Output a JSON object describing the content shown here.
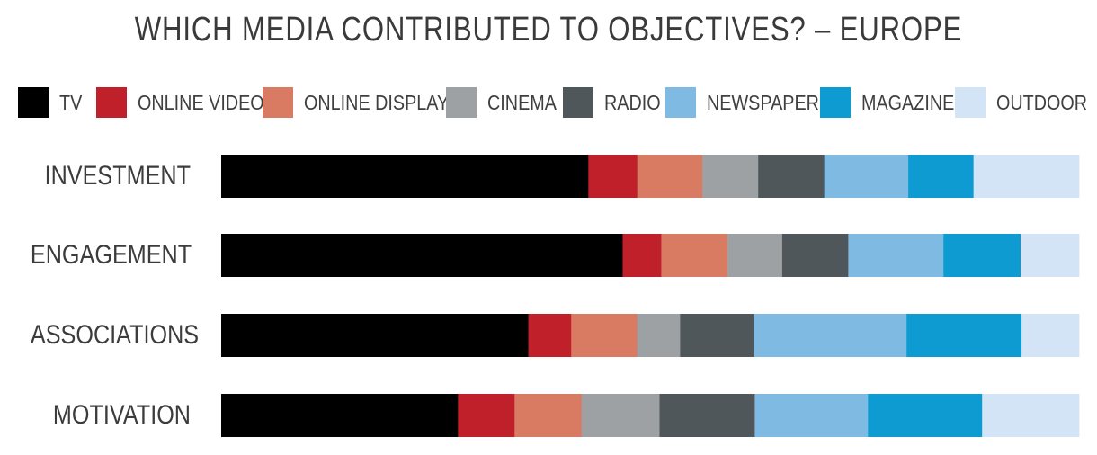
{
  "title": "WHICH MEDIA CONTRIBUTED TO OBJECTIVES? – EUROPE",
  "chart_data": {
    "type": "bar",
    "orientation": "horizontal",
    "stacked": true,
    "normalized": "100%",
    "title": "WHICH MEDIA CONTRIBUTED TO OBJECTIVES? – EUROPE",
    "categories": [
      "INVESTMENT",
      "ENGAGEMENT",
      "ASSOCIATIONS",
      "MOTIVATION"
    ],
    "series": [
      {
        "name": "TV",
        "color": "#000000",
        "values": [
          42.8,
          46.8,
          35.8,
          27.6
        ]
      },
      {
        "name": "ONLINE VIDEO",
        "color": "#c0202a",
        "values": [
          5.7,
          4.5,
          5.0,
          6.6
        ]
      },
      {
        "name": "ONLINE DISPLAY",
        "color": "#d97b63",
        "values": [
          7.6,
          7.7,
          7.7,
          7.8
        ]
      },
      {
        "name": "CINEMA",
        "color": "#9ea1a3",
        "values": [
          6.5,
          6.4,
          5.0,
          9.1
        ]
      },
      {
        "name": "RADIO",
        "color": "#50575b",
        "values": [
          7.7,
          7.7,
          8.6,
          11.1
        ]
      },
      {
        "name": "NEWSPAPER",
        "color": "#7fbae2",
        "values": [
          9.8,
          11.1,
          17.8,
          13.2
        ]
      },
      {
        "name": "MAGAZINE",
        "color": "#0d9bd2",
        "values": [
          7.6,
          9.0,
          13.4,
          13.3
        ]
      },
      {
        "name": "OUTDOOR",
        "color": "#d3e4f6",
        "values": [
          12.3,
          6.8,
          6.7,
          11.3
        ]
      }
    ],
    "xlim": [
      0,
      100
    ],
    "legend": "top",
    "grid": false
  }
}
